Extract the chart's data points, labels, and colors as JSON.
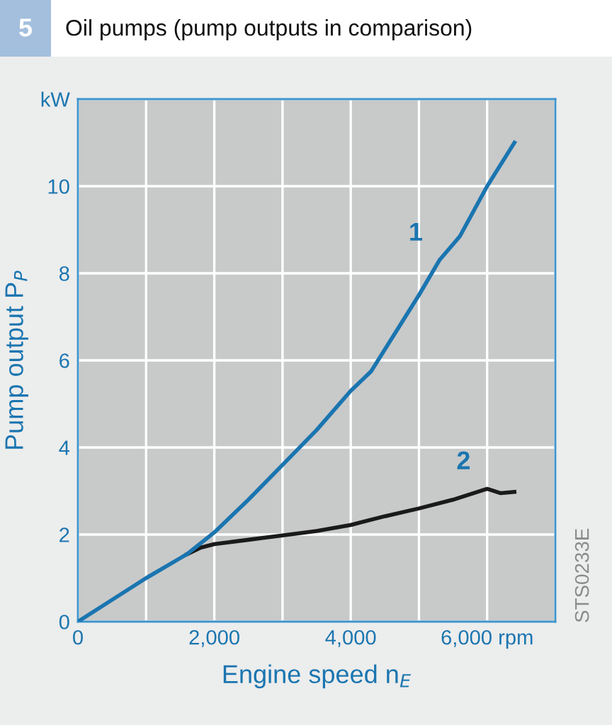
{
  "chart_data": {
    "type": "line",
    "title": "Oil pumps (pump outputs in comparison)",
    "xlabel": "Engine speed n$_{E}$",
    "ylabel": "Pump output P$_{P}$",
    "annotations": [
      "5",
      "STS0233E"
    ],
    "series": [
      {
        "name": "1",
        "color": "#1a75b0",
        "x": [
          0,
          500,
          1000,
          1600,
          2000,
          2500,
          3000,
          3500,
          4000,
          4300,
          4600,
          5000,
          5300,
          5600,
          6000,
          6400
        ],
        "values": [
          0,
          0.5,
          1.0,
          1.55,
          2.05,
          2.8,
          3.6,
          4.4,
          5.3,
          5.75,
          6.5,
          7.5,
          8.3,
          8.85,
          10.0,
          11.0
        ]
      },
      {
        "name": "2",
        "color": "#1a1a1a",
        "x": [
          1600,
          1800,
          2000,
          2500,
          3000,
          3500,
          4000,
          4500,
          5000,
          5500,
          6000,
          6200,
          6400
        ],
        "values": [
          1.55,
          1.7,
          1.78,
          1.88,
          1.98,
          2.08,
          2.22,
          2.42,
          2.6,
          2.8,
          3.05,
          2.95,
          2.98
        ]
      }
    ],
    "xlim": [
      0,
      7000
    ],
    "ylim": [
      0,
      12
    ],
    "xticks": [
      0,
      {
        "value": 1000,
        "label": null
      },
      {
        "value": 2000,
        "label": "2,000"
      },
      {
        "value": 3000,
        "label": null
      },
      {
        "value": 4000,
        "label": "4,000"
      },
      {
        "value": 5000,
        "label": null
      },
      {
        "value": 6000,
        "label": "6,000 rpm"
      },
      {
        "value": 7000,
        "label": null
      }
    ],
    "yticks": [
      0,
      2,
      4,
      6,
      8,
      10,
      {
        "value": 12,
        "label": "kW"
      }
    ],
    "grid": true,
    "legend": false,
    "marker": "none",
    "line_style": "solid"
  }
}
